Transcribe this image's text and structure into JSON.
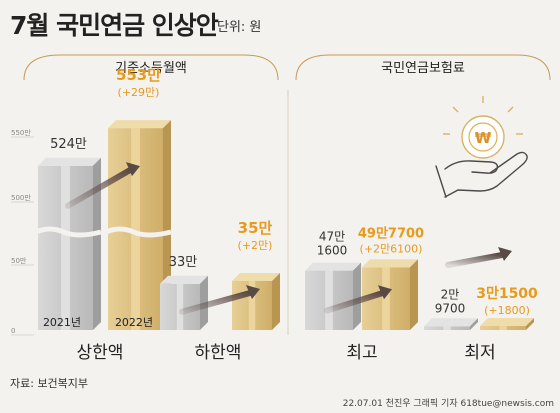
{
  "header": {
    "title": "7월 국민연금 인상안",
    "unit": "단위: 원"
  },
  "footer": {
    "source": "자료: 보건복지부",
    "credit": "22.07.01 천진우 그래픽 기자 618tue@newsis.com"
  },
  "colors": {
    "gray": "#c9c9c9",
    "gold": "#dcc081",
    "accent": "#e79a1c",
    "arrow": "#5a4a45",
    "section": "#c89a4f"
  },
  "icon": "hand-holding-won-coin-icon",
  "chart_data": [
    {
      "type": "bar",
      "title": "기준소득월액",
      "categories": [
        "상한액",
        "하한액"
      ],
      "series": [
        {
          "name": "2021년",
          "values": [
            5240000,
            330000
          ],
          "labels": [
            "524만",
            "33만"
          ]
        },
        {
          "name": "2022년",
          "values": [
            5530000,
            350000
          ],
          "labels": [
            "553만",
            "35만"
          ],
          "changes": [
            "(+29만)",
            "(+2만)"
          ]
        }
      ],
      "axis": {
        "ticks": [
          {
            "value": 0,
            "label": "0"
          },
          {
            "value": 500000,
            "label": "50만"
          },
          {
            "value": 5000000,
            "label": "500만"
          },
          {
            "value": 5500000,
            "label": "550만"
          }
        ],
        "broken": true
      }
    },
    {
      "type": "bar",
      "title": "국민연금보험료",
      "categories": [
        "최고",
        "최저"
      ],
      "series": [
        {
          "values": [
            471600,
            29700
          ],
          "labels": [
            "47만\n1600",
            "2만\n9700"
          ]
        },
        {
          "values": [
            497700,
            31500
          ],
          "labels": [
            "49만7700",
            "3만1500"
          ],
          "changes": [
            "(+2만6100)",
            "(+1800)"
          ]
        }
      ]
    }
  ]
}
